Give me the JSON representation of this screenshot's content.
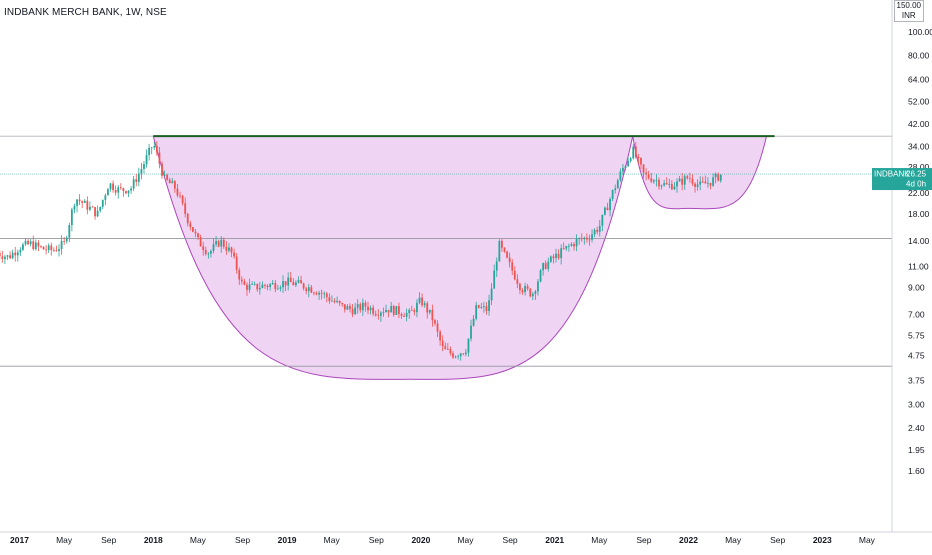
{
  "header": {
    "symbol_title": "INDBANK MERCH BANK, 1W, NSE",
    "currency_top": "150.00",
    "currency_unit": "INR"
  },
  "price_badge": {
    "ticker": "INDBANK",
    "price": "26.25",
    "countdown": "4d 0h",
    "color": "#26a69a"
  },
  "colors": {
    "up": "#26a69a",
    "down": "#ef5350",
    "pattern_fill": "#e9c6ef",
    "pattern_stroke": "#ab47bc",
    "resistance": "#1b5e20",
    "background": "#ffffff"
  },
  "chart_data": {
    "type": "candlestick",
    "title": "INDBANK MERCH BANK, 1W, NSE",
    "y_scale": "log",
    "ylim": [
      1.45,
      150
    ],
    "y_ticks": [
      "100.00",
      "80.00",
      "64.00",
      "52.00",
      "42.00",
      "34.00",
      "28.00",
      "22.00",
      "18.00",
      "14.00",
      "11.00",
      "9.00",
      "7.00",
      "5.75",
      "4.75",
      "3.75",
      "3.00",
      "2.40",
      "1.95",
      "1.60"
    ],
    "x_ticks": [
      "2017",
      "May",
      "Sep",
      "2018",
      "May",
      "Sep",
      "2019",
      "May",
      "Sep",
      "2020",
      "May",
      "Sep",
      "2021",
      "May",
      "Sep",
      "2022",
      "May",
      "Sep",
      "2023",
      "May"
    ],
    "x_tick_dates": [
      "2017-01",
      "2017-05",
      "2017-09",
      "2018-01",
      "2018-05",
      "2018-09",
      "2019-01",
      "2019-05",
      "2019-09",
      "2020-01",
      "2020-05",
      "2020-09",
      "2021-01",
      "2021-05",
      "2021-09",
      "2022-01",
      "2022-05",
      "2022-09",
      "2023-01",
      "2023-05"
    ],
    "last_price": 26.25,
    "levels": [
      {
        "name": "resistance",
        "value": 37.5
      },
      {
        "name": "support_upper",
        "value": 14.3
      },
      {
        "name": "support_lower",
        "value": 4.3
      }
    ],
    "anchors": [
      [
        "2016-11",
        12.5
      ],
      [
        "2016-12",
        12.0
      ],
      [
        "2017-01",
        13.2
      ],
      [
        "2017-02",
        13.6
      ],
      [
        "2017-03",
        13.0
      ],
      [
        "2017-04",
        12.8
      ],
      [
        "2017-05",
        13.6
      ],
      [
        "2017-06",
        21.0
      ],
      [
        "2017-07",
        19.5
      ],
      [
        "2017-08",
        18.0
      ],
      [
        "2017-09",
        24.0
      ],
      [
        "2017-10",
        22.5
      ],
      [
        "2017-11",
        23.0
      ],
      [
        "2017-12",
        28.0
      ],
      [
        "2018-01",
        35.0
      ],
      [
        "2018-02",
        25.0
      ],
      [
        "2018-03",
        23.0
      ],
      [
        "2018-04",
        17.5
      ],
      [
        "2018-05",
        14.0
      ],
      [
        "2018-06",
        12.5
      ],
      [
        "2018-07",
        14.0
      ],
      [
        "2018-08",
        12.5
      ],
      [
        "2018-09",
        9.2
      ],
      [
        "2018-10",
        9.0
      ],
      [
        "2018-11",
        9.2
      ],
      [
        "2018-12",
        9.3
      ],
      [
        "2019-01",
        9.5
      ],
      [
        "2019-02",
        9.3
      ],
      [
        "2019-03",
        9.0
      ],
      [
        "2019-04",
        8.6
      ],
      [
        "2019-05",
        8.0
      ],
      [
        "2019-06",
        7.5
      ],
      [
        "2019-07",
        7.3
      ],
      [
        "2019-08",
        7.6
      ],
      [
        "2019-09",
        7.2
      ],
      [
        "2019-10",
        7.4
      ],
      [
        "2019-11",
        7.2
      ],
      [
        "2019-12",
        7.0
      ],
      [
        "2020-01",
        8.0
      ],
      [
        "2020-02",
        6.8
      ],
      [
        "2020-03",
        5.0
      ],
      [
        "2020-04",
        4.8
      ],
      [
        "2020-05",
        5.0
      ],
      [
        "2020-06",
        7.5
      ],
      [
        "2020-07",
        7.3
      ],
      [
        "2020-08",
        13.5
      ],
      [
        "2020-09",
        11.0
      ],
      [
        "2020-10",
        9.0
      ],
      [
        "2020-11",
        8.5
      ],
      [
        "2020-12",
        11.0
      ],
      [
        "2021-01",
        12.0
      ],
      [
        "2021-02",
        13.0
      ],
      [
        "2021-03",
        14.0
      ],
      [
        "2021-04",
        14.5
      ],
      [
        "2021-05",
        16.0
      ],
      [
        "2021-06",
        21.0
      ],
      [
        "2021-07",
        27.0
      ],
      [
        "2021-08",
        33.0
      ],
      [
        "2021-09",
        26.0
      ],
      [
        "2021-10",
        25.0
      ],
      [
        "2021-11",
        23.5
      ],
      [
        "2021-12",
        24.0
      ],
      [
        "2022-01",
        25.5
      ],
      [
        "2022-02",
        23.5
      ],
      [
        "2022-03",
        24.5
      ],
      [
        "2022-04",
        26.25
      ]
    ]
  },
  "pattern": {
    "name": "cup and handle",
    "cup_start": [
      "2018-01",
      37.5
    ],
    "cup_bottom": [
      "2019-12",
      3.8
    ],
    "cup_end": [
      "2021-08",
      37.5
    ],
    "handle_start": [
      "2021-08",
      37.5
    ],
    "handle_bottom": [
      "2022-01",
      19.0
    ],
    "handle_end": [
      "2022-08",
      37.5
    ]
  }
}
